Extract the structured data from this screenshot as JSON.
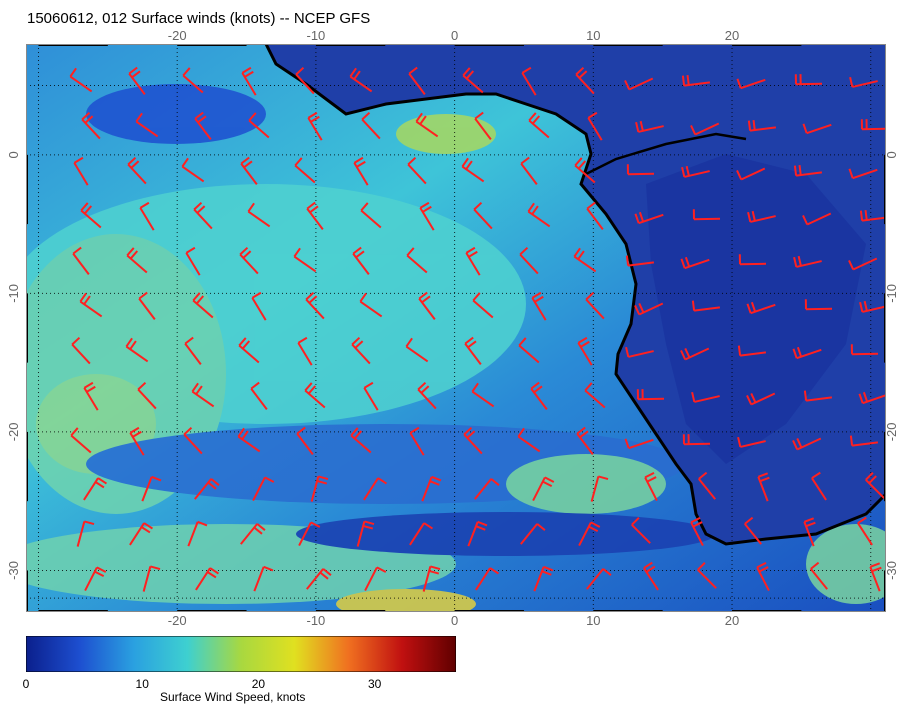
{
  "title": "15060612, 012 Surface winds (knots) -- NCEP GFS",
  "map": {
    "lon_ticks": [
      "-20",
      "-10",
      "0",
      "10",
      "20"
    ],
    "lat_ticks": [
      "0",
      "-10",
      "-20",
      "-30"
    ],
    "barb_color": "#ff2020",
    "coast_color": "#000000"
  },
  "colorbar": {
    "ticks": [
      "0",
      "10",
      "20",
      "30"
    ],
    "label": "Surface Wind Speed, knots",
    "colors": [
      "#0b1f8c",
      "#1d4fd0",
      "#2aa0e0",
      "#3ed0d0",
      "#a8d840",
      "#e0e020",
      "#f07020",
      "#c01010",
      "#600000"
    ]
  }
}
